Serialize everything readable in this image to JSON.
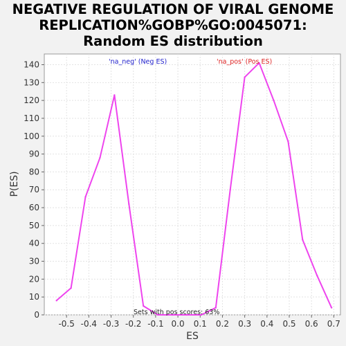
{
  "chart_data": {
    "type": "line",
    "title_lines": [
      "NEGATIVE REGULATION OF VIRAL GENOME",
      "REPLICATION%GOBP%GO:0045071:",
      "Random ES distribution"
    ],
    "xlabel": "ES",
    "ylabel": "P(ES)",
    "xlim": [
      -0.6,
      0.73
    ],
    "ylim": [
      0,
      146
    ],
    "x_ticks": [
      -0.5,
      -0.4,
      -0.3,
      -0.2,
      -0.1,
      0.0,
      0.1,
      0.2,
      0.3,
      0.4,
      0.5,
      0.6,
      0.7
    ],
    "x_tick_labels": [
      "-0.5",
      "-0.4",
      "-0.3",
      "-0.2",
      "-0.1",
      "0.0",
      "0.1",
      "0.2",
      "0.3",
      "0.4",
      "0.5",
      "0.6",
      "0.7"
    ],
    "y_ticks": [
      0,
      10,
      20,
      30,
      40,
      50,
      60,
      70,
      80,
      90,
      100,
      110,
      120,
      130,
      140
    ],
    "y_tick_labels": [
      "0",
      "10",
      "20",
      "30",
      "40",
      "50",
      "60",
      "70",
      "80",
      "90",
      "100",
      "110",
      "120",
      "130",
      "140"
    ],
    "grid": true,
    "series": [
      {
        "color": "#ee44ee",
        "x": [
          -0.545,
          -0.48,
          -0.415,
          -0.35,
          -0.285,
          -0.22,
          -0.155,
          -0.09,
          -0.025,
          0.04,
          0.105,
          0.17,
          0.235,
          0.3,
          0.365,
          0.43,
          0.495,
          0.56,
          0.625,
          0.69
        ],
        "y": [
          8,
          15,
          66,
          88,
          123,
          62,
          5,
          0,
          0,
          0,
          0,
          4,
          70,
          133,
          141,
          120,
          97,
          42,
          22,
          4
        ]
      }
    ],
    "legend": [
      {
        "label": "'na_neg' (Neg ES)",
        "color": "#2222cc",
        "position": "top-left"
      },
      {
        "label": "'na_pos' (Pos ES)",
        "color": "#dd2222",
        "position": "top-right"
      }
    ],
    "annotation": "Sets with pos scores: 63%"
  }
}
